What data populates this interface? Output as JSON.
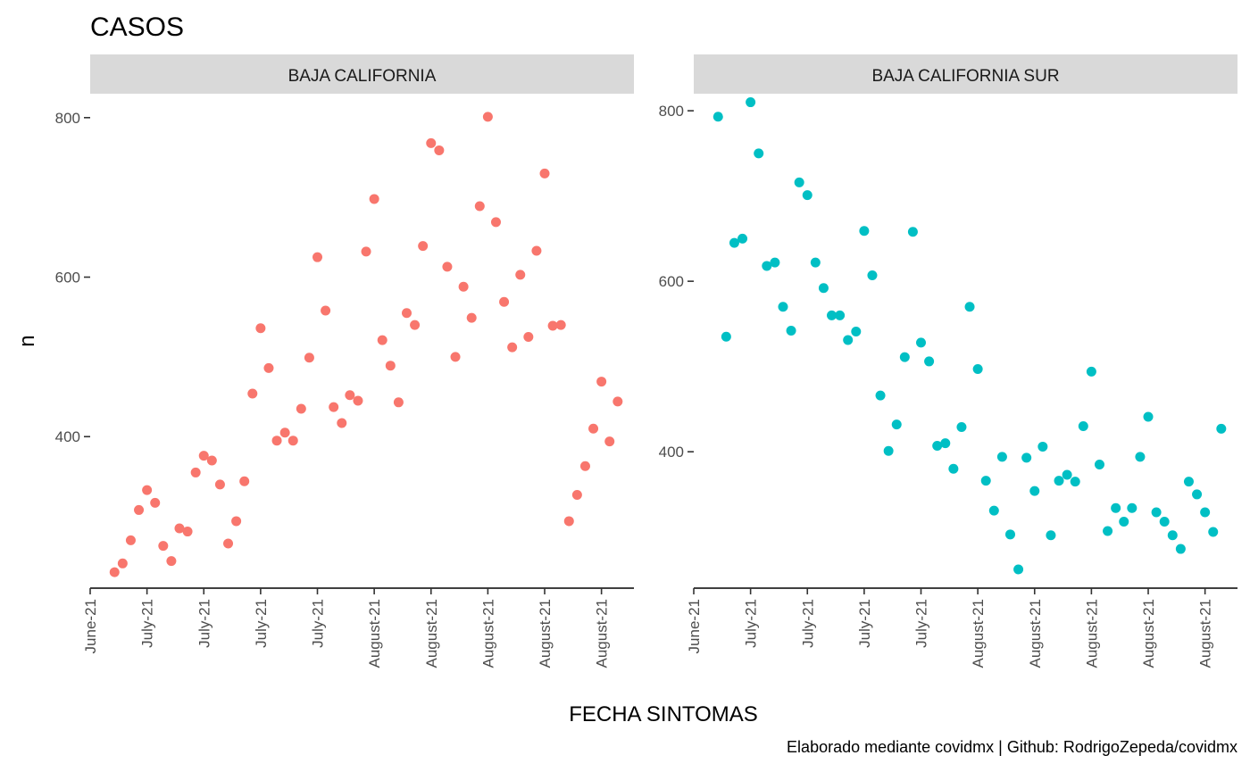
{
  "chart_data": {
    "type": "scatter",
    "title": "CASOS",
    "xlabel": "FECHA SINTOMAS",
    "ylabel": "n",
    "caption": "Elaborado mediante covidmx | Github: RodrigoZepeda/covidmx",
    "grid": false,
    "legend": "none",
    "panels": [
      {
        "name": "BAJA CALIFORNIA",
        "color": "#F8766D",
        "xlim": [
          0,
          67
        ],
        "ylim": [
          210,
          830
        ],
        "yticks": [
          400,
          600,
          800
        ],
        "xticks": [
          0,
          7,
          14,
          21,
          28,
          35,
          42,
          49,
          56,
          63
        ],
        "xtick_labels": [
          "June-21",
          "July-21",
          "July-21",
          "July-21",
          "July-21",
          "August-21",
          "August-21",
          "August-21",
          "August-21",
          "August-21"
        ],
        "x": [
          3,
          4,
          5,
          6,
          7,
          8,
          9,
          10,
          11,
          12,
          13,
          14,
          15,
          16,
          17,
          18,
          19,
          20,
          21,
          22,
          23,
          24,
          25,
          26,
          27,
          28,
          29,
          30,
          31,
          32,
          33,
          34,
          35,
          36,
          37,
          38,
          39,
          40,
          41,
          42,
          43,
          44,
          45,
          46,
          47,
          48,
          49,
          50,
          51,
          52,
          53,
          54,
          55,
          56,
          57,
          58,
          59,
          60,
          61,
          62,
          63,
          64,
          65
        ],
        "y": [
          230,
          241,
          270,
          308,
          333,
          317,
          263,
          244,
          285,
          281,
          355,
          376,
          370,
          340,
          266,
          294,
          344,
          454,
          536,
          486,
          395,
          405,
          395,
          435,
          499,
          625,
          558,
          437,
          417,
          452,
          445,
          632,
          698,
          521,
          489,
          443,
          555,
          540,
          639,
          768,
          759,
          613,
          500,
          588,
          549,
          689,
          801,
          669,
          569,
          512,
          603,
          525,
          633,
          730,
          539,
          540,
          294,
          327,
          363,
          410,
          469,
          394,
          444
        ]
      },
      {
        "name": "BAJA CALIFORNIA SUR",
        "color": "#00BFC4",
        "xlim": [
          0,
          67
        ],
        "ylim": [
          240,
          820
        ],
        "yticks": [
          400,
          600,
          800
        ],
        "xticks": [
          0,
          7,
          14,
          21,
          28,
          35,
          42,
          49,
          56,
          63
        ],
        "xtick_labels": [
          "June-21",
          "July-21",
          "July-21",
          "July-21",
          "July-21",
          "August-21",
          "August-21",
          "August-21",
          "August-21",
          "August-21"
        ],
        "x": [
          3,
          4,
          5,
          6,
          7,
          8,
          9,
          10,
          11,
          12,
          13,
          14,
          15,
          16,
          17,
          18,
          19,
          20,
          21,
          22,
          23,
          24,
          25,
          26,
          27,
          28,
          29,
          30,
          31,
          32,
          33,
          34,
          35,
          36,
          37,
          38,
          39,
          40,
          41,
          42,
          43,
          44,
          45,
          46,
          47,
          48,
          49,
          50,
          51,
          52,
          53,
          54,
          55,
          56,
          57,
          58,
          59,
          60,
          61,
          62,
          63,
          64,
          65
        ],
        "y": [
          793,
          535,
          645,
          650,
          810,
          750,
          618,
          622,
          570,
          542,
          716,
          701,
          622,
          592,
          560,
          560,
          531,
          541,
          659,
          607,
          466,
          401,
          432,
          511,
          658,
          528,
          506,
          407,
          410,
          380,
          429,
          570,
          497,
          366,
          331,
          394,
          303,
          262,
          393,
          354,
          406,
          302,
          366,
          373,
          365,
          430,
          494,
          385,
          307,
          334,
          318,
          334,
          394,
          441,
          329,
          318,
          302,
          286,
          365,
          350,
          329,
          306,
          427
        ]
      }
    ]
  }
}
